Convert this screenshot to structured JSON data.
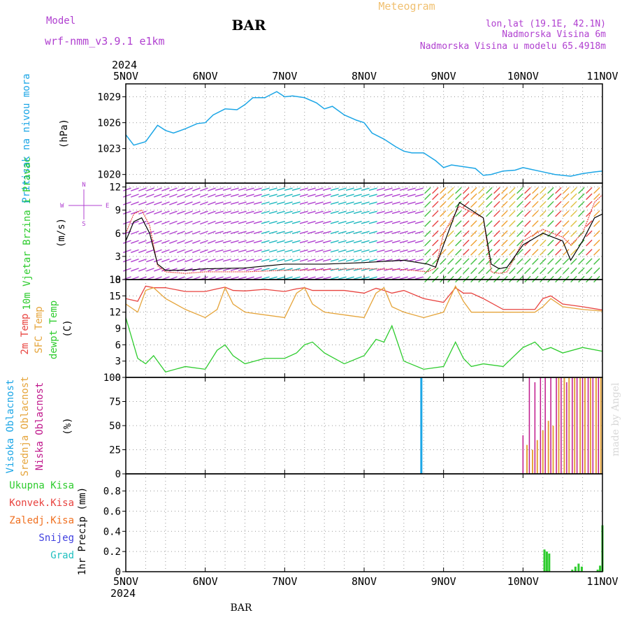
{
  "header": {
    "model_label": "Model",
    "model_name": "wrf-nmm_v3.9.1 e1km",
    "station": "BAR",
    "meteogram": "Meteogram",
    "lonlat": "lon,lat (19.1E, 42.1N)",
    "elevation": "Nadmorska Visina 6m",
    "model_elevation": "Nadmorska Visina u modelu 65.4918m"
  },
  "footer": {
    "station": "BAR"
  },
  "watermark": "made by Angel",
  "time_axis": {
    "year": "2024",
    "labels": [
      "5NOV",
      "6NOV",
      "7NOV",
      "8NOV",
      "9NOV",
      "10NOV",
      "11NOV"
    ]
  },
  "colors": {
    "pressure": "#1ca6e6",
    "temp2m": "#e8433f",
    "sfc": "#e5a43a",
    "dewpt": "#2ecc2e",
    "wind_speed": "#000000",
    "gust": "#e8433f",
    "high_cloud": "#1ca6e6",
    "mid_cloud": "#e5a43a",
    "low_cloud": "#c0188c",
    "total_rain": "#2ecc2e",
    "conv_rain": "#e8433f",
    "frz_rain": "#f07020",
    "snow": "#4040e0",
    "hail": "#20c0c0",
    "label_purple": "#b040d0"
  },
  "chart_data": [
    {
      "type": "line",
      "panel": "pressure",
      "ylabel": "Pritisak na nivou mora",
      "unit": "(hPa)",
      "ylim": [
        1019,
        1030.5
      ],
      "yticks": [
        "1020",
        "1023",
        "1026",
        "1029"
      ],
      "grid": true,
      "x": [
        0,
        0.1,
        0.25,
        0.4,
        0.5,
        0.6,
        0.75,
        0.9,
        1.0,
        1.1,
        1.25,
        1.4,
        1.5,
        1.6,
        1.75,
        1.9,
        2.0,
        2.1,
        2.25,
        2.4,
        2.5,
        2.6,
        2.75,
        2.9,
        3.0,
        3.1,
        3.25,
        3.4,
        3.5,
        3.6,
        3.75,
        3.9,
        4.0,
        4.1,
        4.25,
        4.4,
        4.5,
        4.6,
        4.75,
        4.9,
        5.0,
        5.1,
        5.25,
        5.4,
        5.5,
        5.6,
        5.75,
        5.9,
        6.0
      ],
      "series": [
        {
          "values": [
            1024.6,
            1023.4,
            1023.8,
            1025.7,
            1025.1,
            1024.8,
            1025.3,
            1025.9,
            1026.0,
            1026.9,
            1027.6,
            1027.5,
            1028.1,
            1028.9,
            1028.9,
            1029.6,
            1029.0,
            1029.1,
            1028.9,
            1028.3,
            1027.6,
            1027.9,
            1026.9,
            1026.3,
            1026.0,
            1024.8,
            1024.1,
            1023.2,
            1022.7,
            1022.5,
            1022.5,
            1021.6,
            1020.8,
            1021.1,
            1020.9,
            1020.7,
            1019.9,
            1020.0,
            1020.4,
            1020.5,
            1020.8,
            1020.6,
            1020.3,
            1020.0,
            1019.9,
            1019.8,
            1020.1,
            1020.3,
            1020.4
          ]
        }
      ]
    },
    {
      "type": "line",
      "panel": "wind",
      "ylabel": "10m Vjetar Brzina i Pravac",
      "unit": "(m/s)",
      "direction_key": [
        "N",
        "W",
        "E",
        "S"
      ],
      "ylim": [
        0,
        12.5
      ],
      "yticks": [
        "0",
        "3",
        "6",
        "9",
        "12"
      ],
      "grid": true,
      "x": [
        0,
        0.1,
        0.2,
        0.3,
        0.4,
        0.5,
        0.75,
        1.0,
        1.5,
        2.0,
        2.5,
        3.0,
        3.5,
        3.8,
        3.9,
        4.0,
        4.2,
        4.5,
        4.6,
        4.7,
        4.8,
        5.0,
        5.25,
        5.5,
        5.6,
        5.75,
        5.9,
        6.0
      ],
      "series": [
        {
          "name": "speed",
          "values": [
            5.0,
            7.5,
            8.0,
            6.0,
            2.0,
            1.2,
            1.2,
            1.4,
            1.5,
            2.0,
            2.0,
            2.2,
            2.5,
            2.0,
            1.6,
            4.5,
            10.0,
            8.0,
            2.0,
            1.4,
            1.6,
            4.5,
            6.0,
            5.0,
            2.5,
            5.0,
            8.0,
            8.5
          ]
        },
        {
          "name": "gust",
          "values": [
            6.0,
            8.5,
            9.0,
            7.0,
            1.8,
            1.0,
            0.8,
            1.0,
            1.0,
            1.2,
            1.3,
            1.4,
            1.3,
            1.0,
            1.5,
            6.0,
            9.5,
            8.0,
            1.0,
            0.8,
            1.0,
            5.0,
            6.5,
            5.5,
            4.5,
            6.0,
            10.0,
            11.0
          ]
        }
      ]
    },
    {
      "type": "line",
      "panel": "temperature",
      "ylabel_series": [
        "2m Temp",
        "SFC Temp",
        "dewpt Temp"
      ],
      "unit": "(C)",
      "ylim": [
        0,
        18
      ],
      "yticks": [
        "0",
        "3",
        "6",
        "9",
        "12",
        "15",
        "18"
      ],
      "grid": true,
      "x": [
        0,
        0.15,
        0.25,
        0.35,
        0.5,
        0.75,
        1.0,
        1.15,
        1.25,
        1.35,
        1.5,
        1.75,
        2.0,
        2.15,
        2.25,
        2.35,
        2.5,
        2.75,
        3.0,
        3.15,
        3.25,
        3.35,
        3.5,
        3.75,
        4.0,
        4.15,
        4.25,
        4.35,
        4.5,
        4.75,
        5.0,
        5.15,
        5.25,
        5.35,
        5.5,
        5.75,
        6.0
      ],
      "series": [
        {
          "name": "2m Temp",
          "values": [
            14.5,
            14.0,
            16.8,
            16.5,
            16.5,
            15.8,
            15.8,
            16.3,
            16.6,
            16.0,
            15.9,
            16.2,
            15.8,
            16.3,
            16.5,
            16.0,
            16.0,
            16.0,
            15.5,
            16.4,
            16.0,
            15.5,
            16.0,
            14.5,
            13.8,
            16.5,
            15.5,
            15.5,
            14.5,
            12.5,
            12.5,
            12.5,
            14.5,
            15.0,
            13.5,
            13.0,
            12.4
          ]
        },
        {
          "name": "SFC Temp",
          "values": [
            13.5,
            12.0,
            16.0,
            16.5,
            14.5,
            12.5,
            11.0,
            12.5,
            16.5,
            13.5,
            12.0,
            11.5,
            11.0,
            15.5,
            16.5,
            13.5,
            12.0,
            11.5,
            11.0,
            15.5,
            16.5,
            13.0,
            12.0,
            11.0,
            12.0,
            16.8,
            14.0,
            12.0,
            12.0,
            12.0,
            12.0,
            12.0,
            13.0,
            14.5,
            13.0,
            12.5,
            12.2
          ]
        },
        {
          "name": "dewpt Temp",
          "values": [
            11.0,
            3.5,
            2.5,
            4.0,
            1.0,
            2.0,
            1.5,
            5.0,
            6.0,
            4.0,
            2.5,
            3.5,
            3.5,
            4.5,
            6.0,
            6.5,
            4.5,
            2.5,
            4.0,
            7.0,
            6.5,
            9.5,
            3.0,
            1.5,
            2.0,
            6.5,
            3.5,
            2.0,
            2.5,
            2.0,
            5.5,
            6.5,
            5.0,
            5.5,
            4.5,
            5.5,
            4.8
          ]
        }
      ]
    },
    {
      "type": "bar",
      "panel": "clouds",
      "ylabel_series": [
        "Visoka Oblacnost",
        "Srednja Oblacnost",
        "Niska Oblacnost"
      ],
      "unit": "(%)",
      "ylim": [
        0,
        100
      ],
      "yticks": [
        "0",
        "25",
        "50",
        "75",
        "100"
      ],
      "grid": true,
      "series": [
        {
          "name": "Visoka Oblacnost",
          "x": [
            3.72
          ],
          "values": [
            100
          ]
        },
        {
          "name": "Srednja Oblacnost",
          "x": [
            5.05,
            5.12,
            5.18,
            5.25,
            5.32,
            5.38,
            5.45,
            5.52,
            5.58,
            5.65,
            5.72,
            5.78,
            5.85,
            5.92,
            5.98
          ],
          "values": [
            30,
            25,
            35,
            45,
            55,
            50,
            100,
            100,
            100,
            100,
            100,
            100,
            100,
            100,
            100
          ]
        },
        {
          "name": "Niska Oblacnost",
          "x": [
            5.0,
            5.08,
            5.15,
            5.22,
            5.28,
            5.35,
            5.42,
            5.48,
            5.55,
            5.62,
            5.68,
            5.75,
            5.82,
            5.88,
            5.95
          ],
          "values": [
            40,
            100,
            95,
            100,
            100,
            100,
            100,
            100,
            95,
            100,
            100,
            100,
            100,
            100,
            100
          ]
        }
      ]
    },
    {
      "type": "bar",
      "panel": "precip",
      "ylabel": "1hr Precip (mm)",
      "legend": [
        "Ukupna Kisa",
        "Konvek.Kisa",
        "Zaledj.Kisa",
        "Snijeg",
        "Grad"
      ],
      "ylim": [
        0,
        0.97
      ],
      "yticks": [
        "0",
        "0.2",
        "0.4",
        "0.6",
        "0.8"
      ],
      "grid": true,
      "x": [
        5.27,
        5.3,
        5.33,
        5.62,
        5.66,
        5.7,
        5.74,
        5.94,
        5.97,
        6.0
      ],
      "series": [
        {
          "name": "Ukupna Kisa",
          "values": [
            0.22,
            0.2,
            0.18,
            0.02,
            0.05,
            0.08,
            0.05,
            0.02,
            0.06,
            0.46
          ]
        }
      ]
    }
  ]
}
